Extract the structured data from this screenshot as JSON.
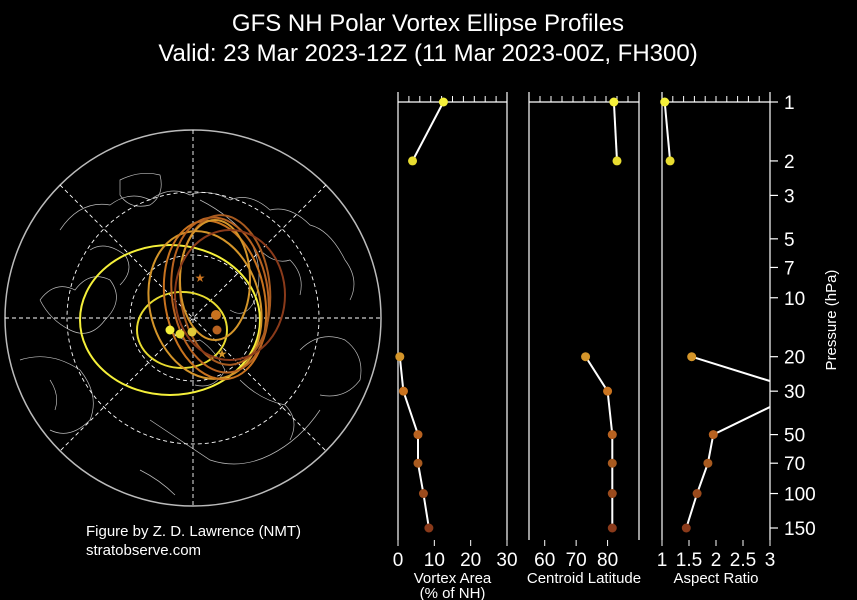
{
  "figure": {
    "title_line1": "GFS NH Polar Vortex Ellipse Profiles",
    "title_line2": "Valid: 23 Mar 2023-12Z  (11 Mar 2023-00Z, FH300)",
    "credit_line1": "Figure by Z. D. Lawrence (NMT)",
    "credit_line2": "stratobserve.com"
  },
  "colors": {
    "background": "#000000",
    "axes": "#ffffff",
    "map_lines": "#bbbbbb",
    "level_colors": [
      "#f5f03a",
      "#e8dc30",
      "#d4952a",
      "#c9731f",
      "#b86220",
      "#a85a1f",
      "#9a4a1c",
      "#8a3a1a"
    ]
  },
  "chart_data": [
    {
      "type": "scatter",
      "name": "vortex_area",
      "xlabel": "Vortex Area\n(% of NH)",
      "xlim": [
        0,
        30
      ],
      "xticks": [
        0,
        10,
        20,
        30
      ],
      "ylog": true,
      "ylim": [
        150,
        1
      ],
      "points": [
        {
          "p": 1,
          "v": 12.5
        },
        {
          "p": 2,
          "v": 4.0
        },
        {
          "p": 20,
          "v": 0.5
        },
        {
          "p": 30,
          "v": 1.5
        },
        {
          "p": 50,
          "v": 5.5
        },
        {
          "p": 70,
          "v": 5.5
        },
        {
          "p": 100,
          "v": 7.0
        },
        {
          "p": 150,
          "v": 8.5
        }
      ]
    },
    {
      "type": "scatter",
      "name": "centroid_latitude",
      "xlabel": "Centroid Latitude",
      "xlim": [
        55,
        90
      ],
      "xticks": [
        60,
        70,
        80
      ],
      "ylog": true,
      "ylim": [
        150,
        1
      ],
      "points": [
        {
          "p": 1,
          "v": 82
        },
        {
          "p": 2,
          "v": 83
        },
        {
          "p": 20,
          "v": 73
        },
        {
          "p": 30,
          "v": 80
        },
        {
          "p": 50,
          "v": 81.5
        },
        {
          "p": 70,
          "v": 81.5
        },
        {
          "p": 100,
          "v": 81.5
        },
        {
          "p": 150,
          "v": 81.5
        }
      ]
    },
    {
      "type": "scatter",
      "name": "aspect_ratio",
      "xlabel": "Aspect Ratio",
      "xlim": [
        1,
        3
      ],
      "xticks": [
        1,
        1.5,
        2,
        2.5,
        3
      ],
      "xtick_labels": [
        "1",
        "1.5",
        "2",
        "2.5",
        "3"
      ],
      "ylog": true,
      "ylim": [
        150,
        1
      ],
      "points": [
        {
          "p": 1,
          "v": 1.05
        },
        {
          "p": 2,
          "v": 1.15
        },
        {
          "p": 20,
          "v": 1.55
        },
        {
          "p": 30,
          "v": 3.6
        },
        {
          "p": 50,
          "v": 1.95
        },
        {
          "p": 70,
          "v": 1.85
        },
        {
          "p": 100,
          "v": 1.65
        },
        {
          "p": 150,
          "v": 1.45
        }
      ]
    }
  ],
  "pressure_axis": {
    "label": "Pressure (hPa)",
    "ticks": [
      1,
      2,
      3,
      5,
      7,
      10,
      20,
      30,
      50,
      70,
      100,
      150
    ],
    "tick_labels": [
      "1",
      "2",
      "3",
      "5",
      "7",
      "10",
      "20",
      "30",
      "50",
      "70",
      "100",
      "150"
    ]
  }
}
